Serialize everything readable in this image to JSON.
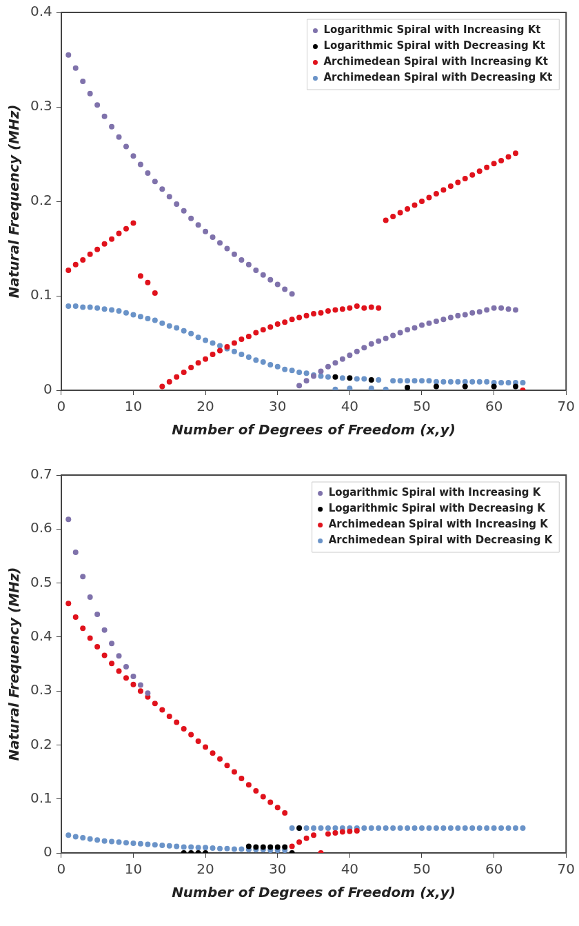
{
  "chart_data": [
    {
      "type": "scatter",
      "xlabel": "Number of Degrees of Freedom (x,y)",
      "ylabel": "Natural Frequency (MHz)",
      "xlim": [
        0,
        70
      ],
      "xticks": [
        0,
        10,
        20,
        30,
        40,
        50,
        60,
        70
      ],
      "ylim": [
        0,
        0.4
      ],
      "yticks": [
        0,
        0.1,
        0.2,
        0.3,
        0.4
      ],
      "grid": false,
      "legend": "top right",
      "marker": "circle",
      "series": [
        {
          "name": "Logarithmic Spiral with Increasing Kt",
          "color": "#7f72ab",
          "x": [
            1,
            2,
            3,
            4,
            5,
            6,
            7,
            8,
            9,
            10,
            11,
            12,
            13,
            14,
            15,
            16,
            17,
            18,
            19,
            20,
            21,
            22,
            23,
            24,
            25,
            26,
            27,
            28,
            29,
            30,
            31,
            32,
            33,
            34,
            35,
            36,
            37,
            38,
            39,
            40,
            41,
            42,
            43,
            44,
            45,
            46,
            47,
            48,
            49,
            50,
            51,
            52,
            53,
            54,
            55,
            56,
            57,
            58,
            59,
            60,
            61,
            62,
            63
          ],
          "values": [
            0.355,
            0.341,
            0.327,
            0.314,
            0.302,
            0.29,
            0.279,
            0.268,
            0.258,
            0.248,
            0.239,
            0.23,
            0.221,
            0.213,
            0.205,
            0.197,
            0.19,
            0.182,
            0.175,
            0.168,
            0.162,
            0.156,
            0.15,
            0.144,
            0.138,
            0.133,
            0.127,
            0.122,
            0.117,
            0.112,
            0.107,
            0.102,
            0.005,
            0.01,
            0.015,
            0.02,
            0.025,
            0.029,
            0.033,
            0.037,
            0.041,
            0.045,
            0.049,
            0.052,
            0.055,
            0.058,
            0.061,
            0.064,
            0.066,
            0.069,
            0.071,
            0.073,
            0.075,
            0.077,
            0.079,
            0.08,
            0.082,
            0.083,
            0.085,
            0.087,
            0.087,
            0.086,
            0.085
          ]
        },
        {
          "name": "Logarithmic Spiral with Decreasing Kt",
          "color": "#000000",
          "x": [
            38,
            40,
            43,
            48,
            52,
            56,
            60,
            63
          ],
          "values": [
            0.014,
            0.013,
            0.011,
            0.003,
            0.004,
            0.004,
            0.004,
            0.004
          ]
        },
        {
          "name": "Archimedean Spiral with Increasing Kt",
          "color": "#e0121c",
          "x": [
            1,
            2,
            3,
            4,
            5,
            6,
            7,
            8,
            9,
            10,
            11,
            12,
            13,
            14,
            15,
            16,
            17,
            18,
            19,
            20,
            21,
            22,
            23,
            24,
            25,
            26,
            27,
            28,
            29,
            30,
            31,
            32,
            33,
            34,
            35,
            36,
            37,
            38,
            39,
            40,
            41,
            42,
            43,
            44,
            45,
            46,
            47,
            48,
            49,
            50,
            51,
            52,
            53,
            54,
            55,
            56,
            57,
            58,
            59,
            60,
            61,
            62,
            63,
            64
          ],
          "values": [
            0.127,
            0.133,
            0.138,
            0.144,
            0.149,
            0.155,
            0.16,
            0.166,
            0.171,
            0.177,
            0.121,
            0.114,
            0.103,
            0.004,
            0.009,
            0.014,
            0.019,
            0.024,
            0.029,
            0.033,
            0.038,
            0.042,
            0.046,
            0.05,
            0.054,
            0.057,
            0.061,
            0.064,
            0.067,
            0.07,
            0.072,
            0.075,
            0.077,
            0.079,
            0.081,
            0.082,
            0.084,
            0.085,
            0.086,
            0.087,
            0.089,
            0.087,
            0.088,
            0.087,
            0.18,
            0.184,
            0.188,
            0.192,
            0.196,
            0.2,
            0.204,
            0.208,
            0.212,
            0.216,
            0.22,
            0.224,
            0.228,
            0.232,
            0.236,
            0.24,
            0.243,
            0.247,
            0.251,
            0
          ]
        },
        {
          "name": "Archimedean Spiral with Decreasing Kt",
          "color": "#6a93c8",
          "x": [
            1,
            2,
            3,
            4,
            5,
            6,
            7,
            8,
            9,
            10,
            11,
            12,
            13,
            14,
            15,
            16,
            17,
            18,
            19,
            20,
            21,
            22,
            23,
            24,
            25,
            26,
            27,
            28,
            29,
            30,
            31,
            32,
            33,
            34,
            35,
            36,
            37,
            38,
            39,
            40,
            41,
            42,
            43,
            44,
            45,
            46,
            47,
            48,
            49,
            50,
            51,
            52,
            53,
            54,
            55,
            56,
            57,
            58,
            59,
            60,
            61,
            62,
            63,
            64
          ],
          "values": [
            0.089,
            0.089,
            0.088,
            0.088,
            0.087,
            0.086,
            0.085,
            0.084,
            0.082,
            0.08,
            0.078,
            0.076,
            0.074,
            0.071,
            0.068,
            0.066,
            0.063,
            0.06,
            0.056,
            0.053,
            0.05,
            0.047,
            0.044,
            0.041,
            0.038,
            0.035,
            0.032,
            0.03,
            0.027,
            0.025,
            0.022,
            0.021,
            0.019,
            0.018,
            0.016,
            0.015,
            0.014,
            0.001,
            0.013,
            0.002,
            0.012,
            0.012,
            0.002,
            0.011,
            0.001,
            0.01,
            0.01,
            0.01,
            0.01,
            0.01,
            0.01,
            0.009,
            0.009,
            0.009,
            0.009,
            0.009,
            0.009,
            0.009,
            0.009,
            0.008,
            0.008,
            0.008,
            0.008,
            0.008
          ]
        }
      ]
    },
    {
      "type": "scatter",
      "xlabel": "Number of Degrees of Freedom (x,y)",
      "ylabel": "Natural Frequency (MHz)",
      "xlim": [
        0,
        70
      ],
      "xticks": [
        0,
        10,
        20,
        30,
        40,
        50,
        60,
        70
      ],
      "ylim": [
        0,
        0.7
      ],
      "yticks": [
        0,
        0.1,
        0.2,
        0.3,
        0.4,
        0.5,
        0.6,
        0.7
      ],
      "grid": false,
      "legend": "top right",
      "marker": "circle",
      "series": [
        {
          "name": "Logarithmic Spiral with Increasing K",
          "color": "#7f72ab",
          "x": [
            1,
            2,
            3,
            4,
            5,
            6,
            7,
            8,
            9,
            10,
            11,
            12
          ],
          "values": [
            0.618,
            0.557,
            0.512,
            0.474,
            0.442,
            0.413,
            0.388,
            0.365,
            0.345,
            0.327,
            0.311,
            0.296
          ]
        },
        {
          "name": "Logarithmic Spiral with Decreasing K",
          "color": "#000000",
          "x": [
            17,
            18,
            19,
            20,
            26,
            27,
            28,
            29,
            30,
            31,
            32,
            33
          ],
          "values": [
            0,
            0,
            0,
            0,
            0.012,
            0.011,
            0.011,
            0.011,
            0.011,
            0.011,
            0,
            0.046
          ]
        },
        {
          "name": "Archimedean Spiral with Increasing K",
          "color": "#e0121c",
          "x": [
            1,
            2,
            3,
            4,
            5,
            6,
            7,
            8,
            9,
            10,
            11,
            12,
            13,
            14,
            15,
            16,
            17,
            18,
            19,
            20,
            21,
            22,
            23,
            24,
            25,
            26,
            27,
            28,
            29,
            30,
            31,
            32,
            33,
            34,
            35,
            36,
            37,
            38,
            39,
            40,
            41
          ],
          "values": [
            0.462,
            0.437,
            0.416,
            0.398,
            0.382,
            0.366,
            0.351,
            0.337,
            0.324,
            0.312,
            0.3,
            0.289,
            0.277,
            0.265,
            0.253,
            0.242,
            0.23,
            0.219,
            0.207,
            0.196,
            0.185,
            0.174,
            0.162,
            0.15,
            0.138,
            0.126,
            0.115,
            0.104,
            0.094,
            0.084,
            0.074,
            0.012,
            0.02,
            0.027,
            0.033,
            0,
            0.035,
            0.037,
            0.039,
            0.04,
            0.041
          ]
        },
        {
          "name": "Archimedean Spiral with Decreasing K",
          "color": "#6a93c8",
          "x": [
            1,
            2,
            3,
            4,
            5,
            6,
            7,
            8,
            9,
            10,
            11,
            12,
            13,
            14,
            15,
            16,
            17,
            18,
            19,
            20,
            21,
            22,
            23,
            24,
            25,
            26,
            27,
            28,
            29,
            30,
            31,
            32,
            33,
            34,
            35,
            36,
            37,
            38,
            39,
            40,
            41,
            42,
            43,
            44,
            45,
            46,
            47,
            48,
            49,
            50,
            51,
            52,
            53,
            54,
            55,
            56,
            57,
            58,
            59,
            60,
            61,
            62,
            63,
            64
          ],
          "values": [
            0.033,
            0.03,
            0.028,
            0.026,
            0.024,
            0.022,
            0.021,
            0.02,
            0.019,
            0.018,
            0.017,
            0.016,
            0.015,
            0.014,
            0.013,
            0.012,
            0.011,
            0.011,
            0.01,
            0.01,
            0.009,
            0.008,
            0.008,
            0.007,
            0.007,
            0.006,
            0.006,
            0.006,
            0.005,
            0.005,
            0.005,
            0.046,
            0.046,
            0.046,
            0.046,
            0.046,
            0.046,
            0.046,
            0.046,
            0.046,
            0.046,
            0.046,
            0.046,
            0.046,
            0.046,
            0.046,
            0.046,
            0.046,
            0.046,
            0.046,
            0.046,
            0.046,
            0.046,
            0.046,
            0.046,
            0.046,
            0.046,
            0.046,
            0.046,
            0.046,
            0.046,
            0.046,
            0.046,
            0.046
          ]
        }
      ]
    }
  ]
}
